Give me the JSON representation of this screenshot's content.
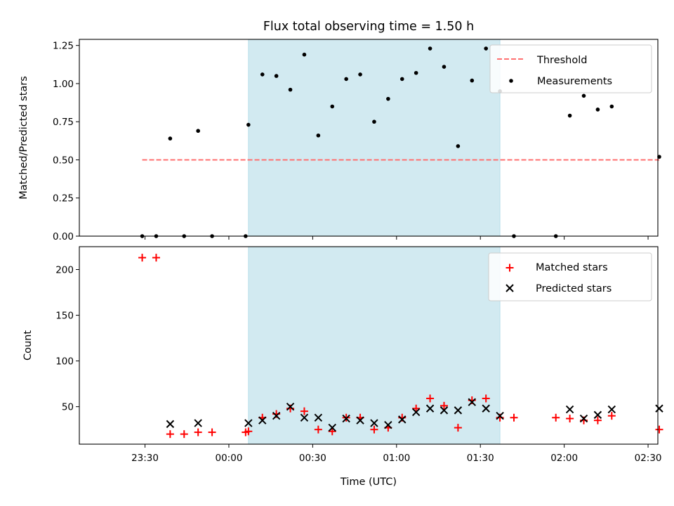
{
  "chart_data": [
    {
      "type": "scatter",
      "title": "Flux total observing time = 1.50 h",
      "ylabel": "Matched/Predicted stars",
      "xlim_minutes_rel_2330": [
        -23.5,
        183.5
      ],
      "ylim": [
        0,
        1.29
      ],
      "yticks": [
        "0.00",
        "0.25",
        "0.50",
        "0.75",
        "1.00",
        "1.25"
      ],
      "shaded_interval": [
        "00:07",
        "01:37"
      ],
      "threshold": {
        "name": "Threshold",
        "value": 0.5,
        "x_start": "23:29",
        "x_end": "02:34",
        "color": "#ff7070",
        "style": "dashed"
      },
      "series": [
        {
          "name": "Measurements",
          "color": "#000000",
          "points": [
            [
              "23:29",
              0.0
            ],
            [
              "23:34",
              0.0
            ],
            [
              "23:39",
              0.64
            ],
            [
              "23:44",
              0.0
            ],
            [
              "23:49",
              0.69
            ],
            [
              "23:54",
              0.0
            ],
            [
              "00:06",
              0.0
            ],
            [
              "00:07",
              0.73
            ],
            [
              "00:12",
              1.06
            ],
            [
              "00:17",
              1.05
            ],
            [
              "00:22",
              0.96
            ],
            [
              "00:27",
              1.19
            ],
            [
              "00:32",
              0.66
            ],
            [
              "00:37",
              0.85
            ],
            [
              "00:42",
              1.03
            ],
            [
              "00:47",
              1.06
            ],
            [
              "00:52",
              0.75
            ],
            [
              "00:57",
              0.9
            ],
            [
              "01:02",
              1.03
            ],
            [
              "01:07",
              1.07
            ],
            [
              "01:12",
              1.23
            ],
            [
              "01:17",
              1.11
            ],
            [
              "01:22",
              0.59
            ],
            [
              "01:27",
              1.02
            ],
            [
              "01:32",
              1.23
            ],
            [
              "01:37",
              0.95
            ],
            [
              "01:42",
              0.0
            ],
            [
              "01:57",
              0.0
            ],
            [
              "02:02",
              0.79
            ],
            [
              "02:07",
              0.92
            ],
            [
              "02:12",
              0.83
            ],
            [
              "02:17",
              0.85
            ],
            [
              "02:34",
              0.52
            ]
          ]
        }
      ]
    },
    {
      "type": "scatter",
      "xlabel": "Time (UTC)",
      "ylabel": "Count",
      "xlim_minutes_rel_2330": [
        -23.5,
        183.5
      ],
      "ylim": [
        9,
        225
      ],
      "yticks": [
        "50",
        "100",
        "150",
        "200"
      ],
      "xticks": [
        "23:30",
        "00:00",
        "00:30",
        "01:00",
        "01:30",
        "02:00",
        "02:30"
      ],
      "shaded_interval": [
        "00:07",
        "01:37"
      ],
      "series": [
        {
          "name": "Matched stars",
          "marker": "plus",
          "color": "#ff0000",
          "points": [
            [
              "23:29",
              213
            ],
            [
              "23:34",
              213
            ],
            [
              "23:39",
              20
            ],
            [
              "23:44",
              20
            ],
            [
              "23:49",
              22
            ],
            [
              "23:54",
              22
            ],
            [
              "00:06",
              22
            ],
            [
              "00:07",
              23
            ],
            [
              "00:12",
              38
            ],
            [
              "00:17",
              42
            ],
            [
              "00:22",
              48
            ],
            [
              "00:27",
              45
            ],
            [
              "00:32",
              25
            ],
            [
              "00:37",
              23
            ],
            [
              "00:42",
              38
            ],
            [
              "00:47",
              38
            ],
            [
              "00:52",
              25
            ],
            [
              "00:57",
              27
            ],
            [
              "01:02",
              38
            ],
            [
              "01:07",
              48
            ],
            [
              "01:12",
              59
            ],
            [
              "01:17",
              51
            ],
            [
              "01:22",
              27
            ],
            [
              "01:27",
              57
            ],
            [
              "01:32",
              59
            ],
            [
              "01:37",
              38
            ],
            [
              "01:42",
              38
            ],
            [
              "01:57",
              38
            ],
            [
              "02:02",
              37
            ],
            [
              "02:07",
              35
            ],
            [
              "02:12",
              35
            ],
            [
              "02:17",
              40
            ],
            [
              "02:34",
              25
            ]
          ]
        },
        {
          "name": "Predicted stars",
          "marker": "x",
          "color": "#000000",
          "points": [
            [
              "23:39",
              31
            ],
            [
              "23:49",
              32
            ],
            [
              "00:07",
              32
            ],
            [
              "00:12",
              35
            ],
            [
              "00:17",
              40
            ],
            [
              "00:22",
              50
            ],
            [
              "00:27",
              38
            ],
            [
              "00:32",
              38
            ],
            [
              "00:37",
              27
            ],
            [
              "00:42",
              37
            ],
            [
              "00:47",
              35
            ],
            [
              "00:52",
              32
            ],
            [
              "00:57",
              30
            ],
            [
              "01:02",
              36
            ],
            [
              "01:07",
              44
            ],
            [
              "01:12",
              48
            ],
            [
              "01:17",
              46
            ],
            [
              "01:22",
              46
            ],
            [
              "01:27",
              55
            ],
            [
              "01:32",
              48
            ],
            [
              "01:37",
              40
            ],
            [
              "02:02",
              47
            ],
            [
              "02:07",
              37
            ],
            [
              "02:12",
              41
            ],
            [
              "02:17",
              47
            ],
            [
              "02:34",
              48
            ]
          ]
        }
      ]
    }
  ],
  "colors": {
    "shade": "#add8e6",
    "axis": "#000000"
  }
}
